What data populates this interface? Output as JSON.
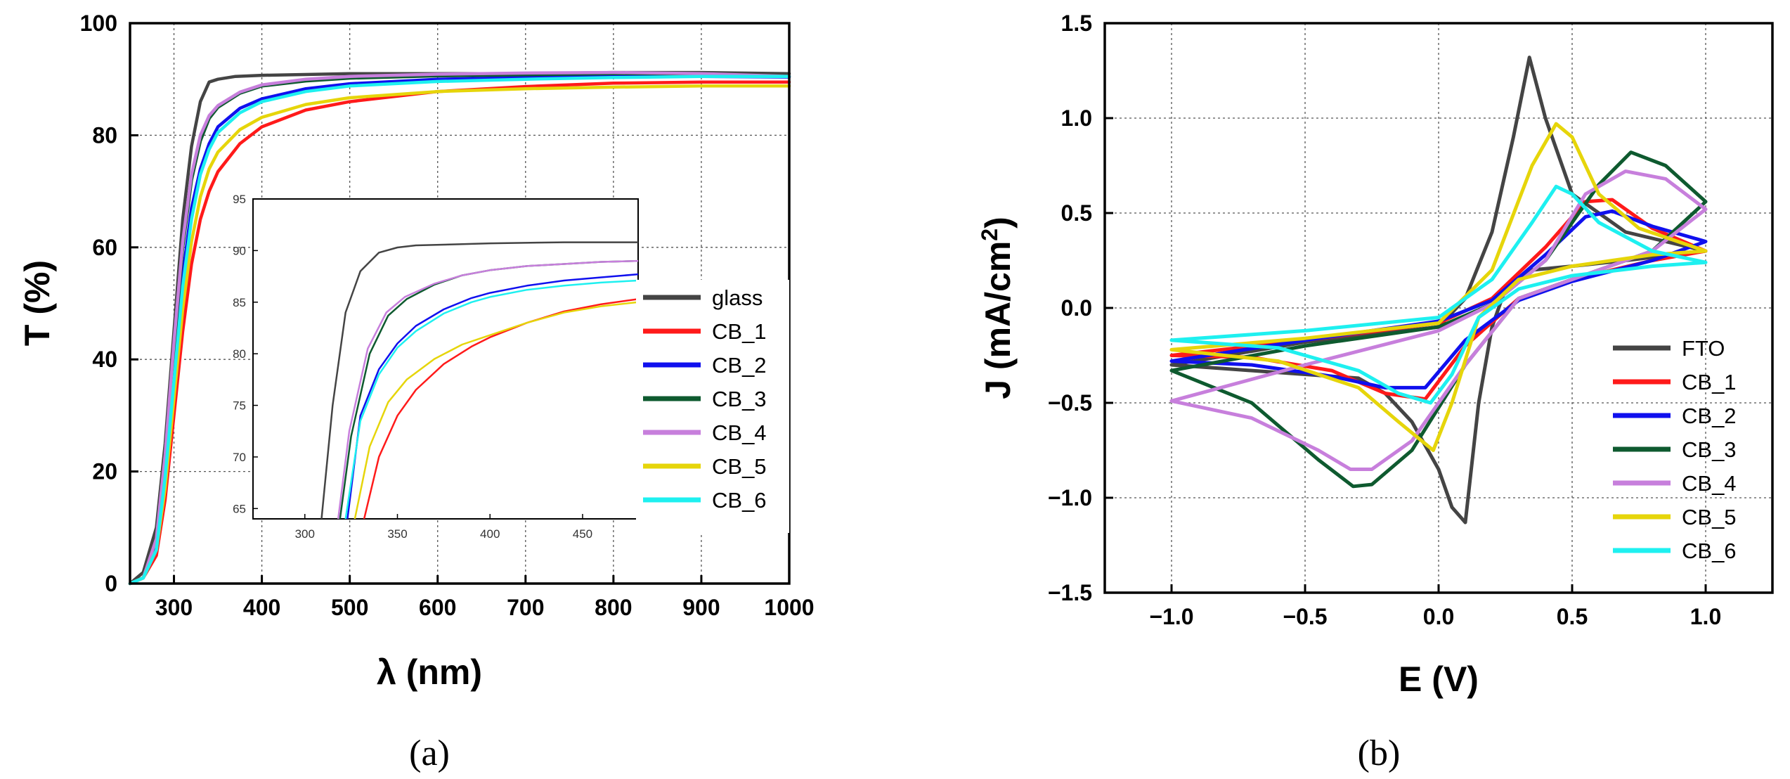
{
  "colors": {
    "glass": "#444444",
    "FTO": "#444444",
    "CB_1": "#ff1a1a",
    "CB_2": "#1010ee",
    "CB_3": "#0e5a2f",
    "CB_4": "#c77fdc",
    "CB_5": "#e6d50a",
    "CB_6": "#1ef0f0"
  },
  "chart_data": [
    {
      "type": "line",
      "panel_label": "(a)",
      "title": "",
      "xlabel": "λ (nm)",
      "ylabel": "T (%)",
      "xlim": [
        250,
        1000
      ],
      "ylim": [
        0,
        100
      ],
      "xticks": [
        "300",
        "400",
        "500",
        "600",
        "700",
        "800",
        "900",
        "1000"
      ],
      "yticks": [
        "0",
        "20",
        "40",
        "60",
        "80",
        "100"
      ],
      "grid": true,
      "legend": "center-right",
      "series": [
        {
          "name": "glass",
          "key": "glass",
          "x": [
            250,
            265,
            280,
            290,
            300,
            310,
            320,
            330,
            340,
            350,
            370,
            400,
            500,
            600,
            700,
            800,
            900,
            1000
          ],
          "y": [
            0,
            2,
            10,
            25,
            45,
            65,
            78,
            86,
            89.5,
            90,
            90.5,
            90.7,
            91,
            91,
            91,
            91.2,
            91.2,
            91
          ]
        },
        {
          "name": "CB_1",
          "key": "CB_1",
          "x": [
            250,
            265,
            280,
            290,
            300,
            310,
            320,
            330,
            340,
            350,
            375,
            400,
            450,
            500,
            600,
            700,
            800,
            900,
            1000
          ],
          "y": [
            0,
            1,
            5,
            15,
            30,
            45,
            57,
            65,
            70,
            73.5,
            78.5,
            81.5,
            84.5,
            86,
            87.8,
            88.7,
            89.3,
            89.5,
            89.5
          ]
        },
        {
          "name": "CB_2",
          "key": "CB_2",
          "x": [
            250,
            265,
            280,
            290,
            300,
            310,
            320,
            330,
            340,
            350,
            375,
            400,
            450,
            500,
            600,
            700,
            800,
            900,
            1000
          ],
          "y": [
            0,
            1,
            7,
            20,
            38,
            55,
            67,
            74,
            78.5,
            81.5,
            84.8,
            86.5,
            88.3,
            89.2,
            90,
            90.3,
            90.5,
            90.5,
            90.4
          ]
        },
        {
          "name": "CB_3",
          "key": "CB_3",
          "x": [
            250,
            265,
            280,
            290,
            300,
            310,
            320,
            330,
            340,
            350,
            375,
            400,
            450,
            500,
            600,
            700,
            800,
            900,
            1000
          ],
          "y": [
            0,
            1,
            8,
            22,
            42,
            60,
            72,
            79,
            83,
            85,
            87.5,
            88.8,
            89.7,
            90.2,
            90.6,
            90.8,
            91,
            91,
            90.5
          ]
        },
        {
          "name": "CB_4",
          "key": "CB_4",
          "x": [
            250,
            265,
            280,
            290,
            300,
            310,
            320,
            330,
            340,
            350,
            375,
            400,
            450,
            500,
            600,
            700,
            800,
            900,
            1000
          ],
          "y": [
            0,
            1,
            8,
            23,
            43,
            61,
            73,
            80,
            83.5,
            85.3,
            87.7,
            89,
            90,
            90.5,
            90.9,
            91.1,
            91.2,
            91,
            90.5
          ]
        },
        {
          "name": "CB_5",
          "key": "CB_5",
          "x": [
            250,
            265,
            280,
            290,
            300,
            310,
            320,
            330,
            340,
            350,
            375,
            400,
            450,
            500,
            600,
            700,
            800,
            900,
            1000
          ],
          "y": [
            0,
            1,
            6,
            17,
            33,
            49,
            61,
            69,
            74,
            77,
            81,
            83.2,
            85.5,
            86.7,
            87.8,
            88.3,
            88.6,
            88.8,
            88.8
          ]
        },
        {
          "name": "CB_6",
          "key": "CB_6",
          "x": [
            250,
            265,
            280,
            290,
            300,
            310,
            320,
            330,
            340,
            350,
            375,
            400,
            450,
            500,
            600,
            700,
            800,
            900,
            1000
          ],
          "y": [
            0,
            1,
            6,
            19,
            36,
            53,
            65,
            73,
            77.5,
            80.5,
            84,
            86,
            87.8,
            88.8,
            89.6,
            90,
            90.3,
            90.5,
            90.5
          ]
        }
      ],
      "inset": {
        "xlim": [
          272,
          480
        ],
        "ylim": [
          64,
          95
        ],
        "xticks": [
          "300",
          "350",
          "400",
          "450"
        ],
        "yticks": [
          "65",
          "70",
          "75",
          "80",
          "85",
          "90",
          "95"
        ],
        "series": [
          {
            "key": "glass",
            "x": [
              309,
              315,
              322,
              330,
              340,
              350,
              360,
              380,
              400,
              440,
              480
            ],
            "y": [
              64,
              75,
              84,
              88,
              89.8,
              90.3,
              90.5,
              90.6,
              90.7,
              90.8,
              90.8
            ]
          },
          {
            "key": "CB_1",
            "x": [
              332,
              340,
              350,
              360,
              375,
              390,
              400,
              420,
              440,
              460,
              480
            ],
            "y": [
              64,
              70,
              74,
              76.5,
              79,
              80.7,
              81.6,
              83,
              84.1,
              84.8,
              85.3
            ]
          },
          {
            "key": "CB_2",
            "x": [
              323,
              330,
              340,
              350,
              360,
              375,
              390,
              400,
              420,
              440,
              460,
              480
            ],
            "y": [
              64,
              74,
              78.5,
              81,
              82.7,
              84.3,
              85.4,
              85.9,
              86.6,
              87.1,
              87.4,
              87.7
            ]
          },
          {
            "key": "CB_3",
            "x": [
              319,
              325,
              335,
              345,
              355,
              370,
              385,
              400,
              420,
              440,
              460,
              480
            ],
            "y": [
              64,
              72,
              80,
              83.7,
              85.3,
              86.7,
              87.6,
              88.1,
              88.5,
              88.7,
              88.9,
              89
            ]
          },
          {
            "key": "CB_4",
            "x": [
              318,
              324,
              334,
              344,
              354,
              370,
              385,
              400,
              420,
              440,
              460,
              480
            ],
            "y": [
              64,
              72.5,
              80.5,
              84,
              85.5,
              86.8,
              87.6,
              88.1,
              88.5,
              88.7,
              88.9,
              89
            ]
          },
          {
            "key": "CB_5",
            "x": [
              327,
              335,
              345,
              355,
              370,
              385,
              400,
              420,
              440,
              460,
              480
            ],
            "y": [
              64,
              71,
              75.3,
              77.5,
              79.5,
              80.9,
              81.8,
              83,
              84,
              84.6,
              85
            ]
          },
          {
            "key": "CB_6",
            "x": [
              322,
              330,
              340,
              350,
              360,
              375,
              390,
              400,
              420,
              440,
              460,
              480
            ],
            "y": [
              64,
              73.5,
              78,
              80.6,
              82.2,
              83.9,
              85,
              85.5,
              86.2,
              86.6,
              86.9,
              87.1
            ]
          }
        ]
      }
    },
    {
      "type": "line",
      "panel_label": "(b)",
      "title": "",
      "xlabel": "E (V)",
      "ylabel_main": "J (mA/cm",
      "ylabel_sup": "2",
      "ylabel_close": ")",
      "xlim": [
        -1.25,
        1.25
      ],
      "ylim": [
        -1.5,
        1.5
      ],
      "xticks": [
        "−1.0",
        "−0.5",
        "0.0",
        "0.5",
        "1.0"
      ],
      "yticks": [
        "−1.5",
        "−1.0",
        "−0.5",
        "0.0",
        "0.5",
        "1.0",
        "1.5"
      ],
      "grid": true,
      "legend": "bottom-right",
      "series": [
        {
          "name": "FTO",
          "key": "FTO",
          "x": [
            -1.0,
            -0.5,
            0.0,
            0.1,
            0.2,
            0.28,
            0.34,
            0.4,
            0.5,
            0.7,
            1.0,
            0.7,
            0.5,
            0.35,
            0.25,
            0.2,
            0.15,
            0.1,
            0.05,
            0,
            -0.1,
            -0.2,
            -0.3,
            -0.5,
            -0.8,
            -1.0
          ],
          "y": [
            -0.3,
            -0.18,
            -0.1,
            0.05,
            0.4,
            0.9,
            1.32,
            1.0,
            0.6,
            0.4,
            0.3,
            0.25,
            0.22,
            0.2,
            0.1,
            -0.1,
            -0.5,
            -1.13,
            -1.05,
            -0.85,
            -0.6,
            -0.45,
            -0.37,
            -0.35,
            -0.32,
            -0.3
          ]
        },
        {
          "name": "CB_1",
          "key": "CB_1",
          "x": [
            -1.0,
            -0.5,
            0.0,
            0.2,
            0.4,
            0.55,
            0.65,
            0.8,
            1.0,
            0.8,
            0.5,
            0.3,
            0.1,
            -0.05,
            -0.2,
            -0.4,
            -0.7,
            -1.0
          ],
          "y": [
            -0.25,
            -0.17,
            -0.08,
            0.05,
            0.32,
            0.56,
            0.57,
            0.42,
            0.3,
            0.25,
            0.15,
            0.05,
            -0.2,
            -0.48,
            -0.45,
            -0.33,
            -0.26,
            -0.25
          ]
        },
        {
          "name": "CB_2",
          "key": "CB_2",
          "x": [
            -1.0,
            -0.5,
            0.0,
            0.2,
            0.4,
            0.55,
            0.65,
            0.8,
            1.0,
            0.8,
            0.5,
            0.3,
            0.1,
            -0.05,
            -0.2,
            -0.4,
            -0.7,
            -1.0
          ],
          "y": [
            -0.28,
            -0.17,
            -0.07,
            0.04,
            0.28,
            0.48,
            0.51,
            0.43,
            0.35,
            0.25,
            0.14,
            0.04,
            -0.17,
            -0.42,
            -0.42,
            -0.36,
            -0.3,
            -0.28
          ]
        },
        {
          "name": "CB_3",
          "key": "CB_3",
          "x": [
            -1.0,
            -0.5,
            0.0,
            0.2,
            0.4,
            0.6,
            0.72,
            0.85,
            1.0,
            0.8,
            0.5,
            0.3,
            0.1,
            -0.1,
            -0.25,
            -0.32,
            -0.45,
            -0.7,
            -1.0
          ],
          "y": [
            -0.33,
            -0.2,
            -0.1,
            0.02,
            0.25,
            0.65,
            0.82,
            0.75,
            0.56,
            0.3,
            0.15,
            0.05,
            -0.3,
            -0.75,
            -0.93,
            -0.94,
            -0.8,
            -0.5,
            -0.33
          ]
        },
        {
          "name": "CB_4",
          "key": "CB_4",
          "x": [
            -1.0,
            -0.5,
            0.0,
            0.2,
            0.4,
            0.55,
            0.7,
            0.85,
            1.0,
            0.8,
            0.5,
            0.3,
            0.1,
            -0.1,
            -0.25,
            -0.33,
            -0.45,
            -0.7,
            -1.0
          ],
          "y": [
            -0.49,
            -0.3,
            -0.12,
            0.02,
            0.25,
            0.6,
            0.72,
            0.68,
            0.52,
            0.3,
            0.15,
            0.05,
            -0.3,
            -0.7,
            -0.85,
            -0.85,
            -0.75,
            -0.58,
            -0.49
          ]
        },
        {
          "name": "CB_5",
          "key": "CB_5",
          "x": [
            -1.0,
            -0.5,
            0.0,
            0.2,
            0.35,
            0.44,
            0.5,
            0.6,
            0.75,
            1.0,
            0.8,
            0.5,
            0.3,
            0.15,
            0.05,
            -0.02,
            -0.15,
            -0.3,
            -0.6,
            -1.0
          ],
          "y": [
            -0.22,
            -0.16,
            -0.08,
            0.2,
            0.75,
            0.97,
            0.9,
            0.6,
            0.42,
            0.3,
            0.28,
            0.22,
            0.15,
            -0.05,
            -0.5,
            -0.75,
            -0.6,
            -0.42,
            -0.28,
            -0.22
          ]
        },
        {
          "name": "CB_6",
          "key": "CB_6",
          "x": [
            -1.0,
            -0.5,
            0.0,
            0.2,
            0.35,
            0.44,
            0.5,
            0.6,
            0.8,
            1.0,
            0.8,
            0.5,
            0.3,
            0.15,
            0.05,
            -0.03,
            -0.15,
            -0.3,
            -0.6,
            -1.0
          ],
          "y": [
            -0.17,
            -0.12,
            -0.05,
            0.15,
            0.45,
            0.64,
            0.6,
            0.45,
            0.3,
            0.24,
            0.22,
            0.17,
            0.1,
            -0.05,
            -0.35,
            -0.5,
            -0.45,
            -0.33,
            -0.21,
            -0.17
          ]
        }
      ]
    }
  ]
}
